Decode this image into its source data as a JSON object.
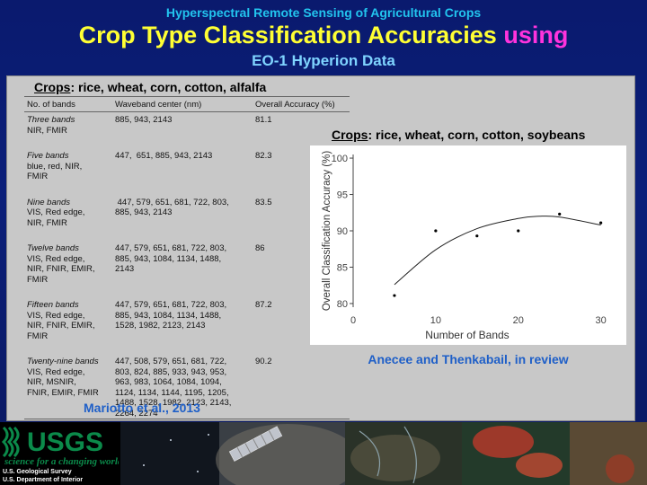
{
  "header": {
    "top_title": "Hyperspectral Remote Sensing of Agricultural Crops",
    "main_title": "Crop Type Classification Accuracies",
    "main_title_highlight": "using",
    "subtitle": "EO-1 Hyperion Data"
  },
  "left": {
    "crops_label": "Crops",
    "crops_list": ": rice, wheat, corn, cotton, alfalfa",
    "table": {
      "headers": [
        "No. of bands",
        "Waveband center (nm)",
        "Overall Accuracy (%)"
      ],
      "rows": [
        {
          "name": "Three bands",
          "desc": [
            "NIR, FMIR"
          ],
          "wave": [
            "885, 943, 2143"
          ],
          "acc": "81.1"
        },
        {
          "name": "Five bands",
          "desc": [
            "blue, red, NIR,",
            "FMIR"
          ],
          "wave": [
            "447,  651, 885, 943, 2143"
          ],
          "acc": "82.3"
        },
        {
          "name": "Nine bands",
          "desc": [
            "VIS, Red edge,",
            "NIR, FMIR"
          ],
          "wave": [
            " 447, 579, 651, 681, 722, 803,",
            "885, 943, 2143"
          ],
          "acc": "83.5"
        },
        {
          "name": "Twelve bands",
          "desc": [
            "VIS, Red edge,",
            "NIR, FNIR, EMIR,",
            "FMIR"
          ],
          "wave": [
            "447, 579, 651, 681, 722, 803,",
            "885, 943, 1084, 1134, 1488,",
            "2143"
          ],
          "acc": "86"
        },
        {
          "name": "Fifteen bands",
          "desc": [
            "VIS, Red edge,",
            "NIR, FNIR, EMIR,",
            "FMIR"
          ],
          "wave": [
            "447, 579, 651, 681, 722, 803,",
            "885, 943, 1084, 1134, 1488,",
            "1528, 1982, 2123, 2143"
          ],
          "acc": "87.2"
        },
        {
          "name": "Twenty-nine bands",
          "desc": [
            "VIS, Red edge,",
            "NIR, MSNIR,",
            "FNIR, EMIR, FMIR"
          ],
          "wave": [
            "447, 508, 579, 651, 681, 722,",
            "803, 824, 885, 933, 943, 953,",
            "963, 983, 1064, 1084, 1094,",
            "1124, 1134, 1144, 1195, 1205,",
            "1488, 1528, 1982, 2123, 2143,",
            "2264, 2274"
          ],
          "acc": "90.2"
        }
      ]
    },
    "citation": "Mariotto et al., 2013"
  },
  "right": {
    "crops_label": "Crops",
    "crops_list": ": rice, wheat, corn, cotton, soybeans",
    "citation": "Anecee and Thenkabail, in review"
  },
  "chart_data": {
    "type": "scatter",
    "xlabel": "Number of Bands",
    "ylabel": "Overall Classification Accuracy (%)",
    "xlim": [
      0,
      32
    ],
    "ylim": [
      79.5,
      100.5
    ],
    "x_ticks": [
      0,
      10,
      20,
      30
    ],
    "y_ticks": [
      80,
      85,
      90,
      95,
      100
    ],
    "points": [
      {
        "x": 5,
        "y": 81.1
      },
      {
        "x": 10,
        "y": 90.0
      },
      {
        "x": 15,
        "y": 89.3
      },
      {
        "x": 20,
        "y": 90.0
      },
      {
        "x": 25,
        "y": 92.3
      },
      {
        "x": 30,
        "y": 91.1
      }
    ],
    "fit_curve": [
      {
        "x": 5,
        "y": 82.6
      },
      {
        "x": 10,
        "y": 87.4
      },
      {
        "x": 15,
        "y": 90.3
      },
      {
        "x": 20,
        "y": 91.7
      },
      {
        "x": 22.5,
        "y": 92.0
      },
      {
        "x": 25,
        "y": 91.9
      },
      {
        "x": 30,
        "y": 90.8
      }
    ],
    "grid": false
  },
  "footer": {
    "usgs": "USGS",
    "tagline": "science for a changing world",
    "line1": "U.S. Geological Survey",
    "line2": "U.S. Department of Interior"
  },
  "colors": {
    "background": "#0b1f7a",
    "title_yellow": "#ffff33",
    "title_magenta": "#ff33dd",
    "top_title_cyan": "#22c4ee",
    "subtitle_blue": "#7fd4ff",
    "citation_blue": "#1e5fc8",
    "usgs_green": "#0b8a4a"
  }
}
